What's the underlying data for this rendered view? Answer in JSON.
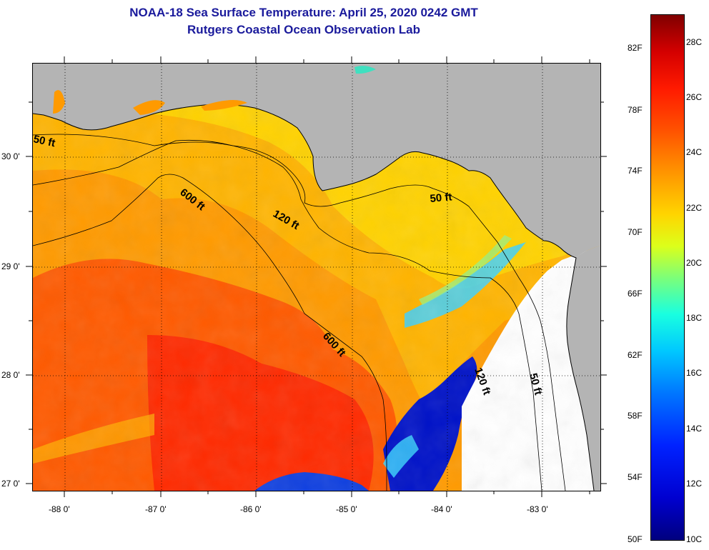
{
  "header": {
    "title": "NOAA-18 Sea Surface Temperature:  April 25, 2020 0242 GMT",
    "subtitle": "Rutgers Coastal Ocean Observation Lab"
  },
  "map": {
    "lat_ticks": [
      "30 0'",
      "29 0'",
      "28 0'",
      "27 0'"
    ],
    "lon_ticks": [
      "-88 0'",
      "-87 0'",
      "-86 0'",
      "-85 0'",
      "-84 0'",
      "-83 0'"
    ],
    "contour_labels": [
      "50 ft",
      "600 ft",
      "120 ft",
      "50 ft",
      "600 ft",
      "120 ft",
      "50 ft"
    ],
    "colors": {
      "land": "#b4b4b4",
      "cloud_mask": "#ffffff",
      "contour": "#000000"
    }
  },
  "colorbar": {
    "fahrenheit": [
      "82F",
      "78F",
      "74F",
      "70F",
      "66F",
      "62F",
      "58F",
      "54F",
      "50F"
    ],
    "celsius": [
      "28C",
      "26C",
      "24C",
      "22C",
      "20C",
      "18C",
      "16C",
      "14C",
      "12C",
      "10C"
    ]
  }
}
